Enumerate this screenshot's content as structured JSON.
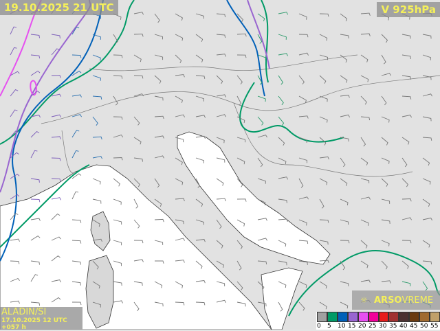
{
  "header": {
    "timestamp": "19.10.2025 21 UTC",
    "level": "V 925hPa"
  },
  "footer": {
    "model": "ALADIN/SI",
    "run": "17.10.2025 12 UTC +057 h"
  },
  "brand": {
    "icon": "arso-logo-icon",
    "name_bold": "ARSO",
    "name_light": "VREME"
  },
  "legend": {
    "colors": [
      "#a0a0a0",
      "#009a66",
      "#0060b8",
      "#9966d0",
      "#e650f0",
      "#f0009a",
      "#e61c1c",
      "#a03030",
      "#4a3030",
      "#6a3a10",
      "#a06a30",
      "#c0a06a"
    ],
    "ticks": [
      "0",
      "5",
      "10",
      "15",
      "20",
      "25",
      "30",
      "35",
      "40",
      "45",
      "50",
      "55"
    ]
  },
  "contour_colors": {
    "5": "#009a66",
    "10": "#0060b8",
    "15": "#9966d0",
    "20": "#e650f0"
  }
}
